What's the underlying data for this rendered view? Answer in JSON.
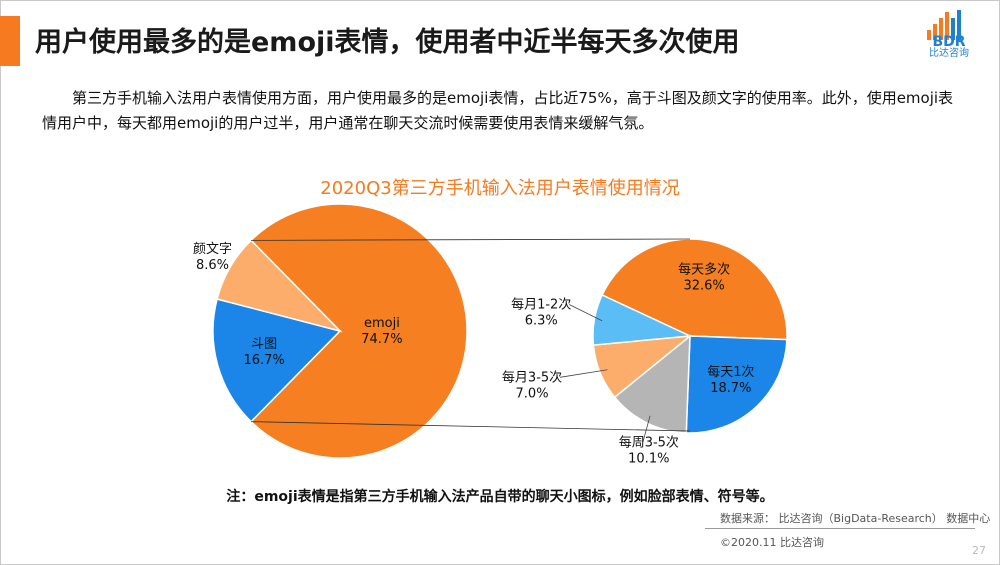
{
  "header": {
    "title": "用户使用最多的是emoji表情，使用者中近半每天多次使用",
    "logo_mark": "BDR",
    "logo_text": "比达咨询"
  },
  "intro": "第三方手机输入法用户表情使用方面，用户使用最多的是emoji表情，占比近75%，高于斗图及颜文字的使用率。此外，使用emoji表情用户中，每天都用emoji的用户过半，用户通常在聊天交流时候需要使用表情来缓解气氛。",
  "chart_data": [
    {
      "type": "pie",
      "title": "2020Q3第三方手机输入法用户表情使用情况",
      "slices": [
        {
          "label": "emoji",
          "value": 74.7,
          "display": "74.7%",
          "color": "#f57f21"
        },
        {
          "label": "斗图",
          "value": 16.7,
          "display": "16.7%",
          "color": "#1b85e8"
        },
        {
          "label": "颜文字",
          "value": 8.6,
          "display": "8.6%",
          "color": "#fdad6b"
        }
      ]
    },
    {
      "type": "pie",
      "title": "",
      "slices": [
        {
          "label": "每天多次",
          "value": 32.6,
          "display": "32.6%",
          "color": "#f57f21"
        },
        {
          "label": "每天1次",
          "value": 18.7,
          "display": "18.7%",
          "color": "#1b85e8"
        },
        {
          "label": "每周3-5次",
          "value": 10.1,
          "display": "10.1%",
          "color": "#b5b5b5"
        },
        {
          "label": "每月3-5次",
          "value": 7.0,
          "display": "7.0%",
          "color": "#fdad6b"
        },
        {
          "label": "每月1-2次",
          "value": 6.3,
          "display": "6.3%",
          "color": "#5bbdf5"
        }
      ]
    }
  ],
  "footer": {
    "note": "注：emoji表情是指第三方手机输入法产品自带的聊天小图标，例如脸部表情、符号等。",
    "source": "数据来源： 比达咨询（BigData-Research） 数据中心",
    "copyright": "©2020.11   比达咨询",
    "page_number": "27"
  }
}
